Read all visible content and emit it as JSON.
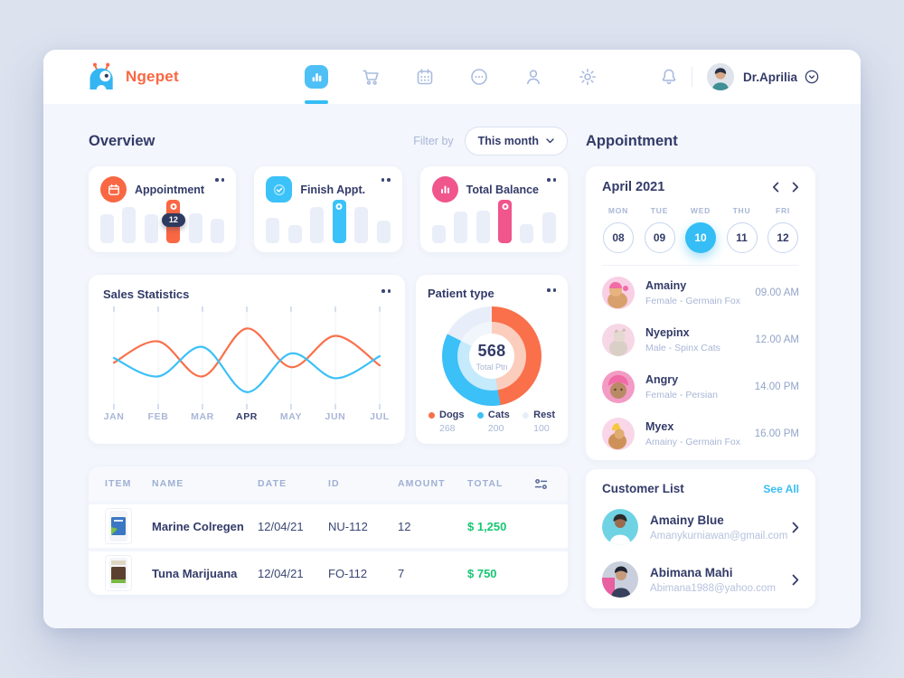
{
  "brand": {
    "name": "Ngepet"
  },
  "header": {
    "nav_icons": [
      "dashboard",
      "cart",
      "calendar",
      "chat",
      "user",
      "settings"
    ],
    "active_nav": "dashboard",
    "user_name": "Dr.Aprilia"
  },
  "overview": {
    "title": "Overview",
    "filter_label": "Filter by",
    "filter_value": "This month"
  },
  "stat_cards": [
    {
      "title": "Appointment",
      "icon": "calendar-icon",
      "accent": "#F96743",
      "bars": [
        32,
        40,
        32,
        48,
        33,
        27
      ],
      "highlight_index": 3,
      "badge": "12"
    },
    {
      "title": "Finish Appt.",
      "icon": "check-icon",
      "accent": "#3BC2F8",
      "bars": [
        28,
        20,
        40,
        48,
        40,
        25
      ],
      "highlight_index": 3
    },
    {
      "title": "Total Balance",
      "icon": "bar-chart-icon",
      "accent": "#F0558C",
      "bars": [
        20,
        35,
        36,
        48,
        21,
        34
      ],
      "highlight_index": 3
    }
  ],
  "chart_data": [
    {
      "type": "line",
      "title": "Sales Statistics",
      "x": [
        "JAN",
        "FEB",
        "MAR",
        "APR",
        "MAY",
        "JUN",
        "JUL"
      ],
      "active_x": "APR",
      "grid": "vertical",
      "legend_position": "none",
      "ylim": [
        0,
        100
      ],
      "series": [
        {
          "name": "orange",
          "color": "#F9704B",
          "values": [
            45,
            68,
            30,
            82,
            40,
            74,
            42
          ]
        },
        {
          "name": "blue",
          "color": "#3BC0F7",
          "values": [
            50,
            30,
            62,
            13,
            55,
            28,
            52
          ]
        }
      ]
    },
    {
      "type": "pie",
      "title": "Patient type",
      "total": "568",
      "center_label": "Total Ptn",
      "segments": [
        {
          "label": "Dogs",
          "value": "268",
          "color": "#F9704B",
          "color_light": "#FBCDBD"
        },
        {
          "label": "Cats",
          "value": "200",
          "color": "#3BC0F7",
          "color_light": "#C5EAFC"
        },
        {
          "label": "Rest",
          "value": "100",
          "color": "#E8EEF9",
          "color_light": "#F1F5FC"
        }
      ]
    }
  ],
  "table": {
    "headers": [
      "ITEM",
      "NAME",
      "DATE",
      "ID",
      "AMOUNT",
      "TOTAL"
    ],
    "rows": [
      {
        "name": "Marine Colregen",
        "date": "12/04/21",
        "id": "NU-112",
        "amount": "12",
        "total": "$ 1,250"
      },
      {
        "name": "Tuna Marijuana",
        "date": "12/04/21",
        "id": "FO-112",
        "amount": "7",
        "total": "$ 750"
      }
    ]
  },
  "appointment_panel": {
    "title": "Appointment",
    "month_label": "April 2021",
    "days": [
      {
        "dow": "MON",
        "date": "08",
        "selected": false
      },
      {
        "dow": "TUE",
        "date": "09",
        "selected": false
      },
      {
        "dow": "WED",
        "date": "10",
        "selected": true
      },
      {
        "dow": "THU",
        "date": "11",
        "selected": false
      },
      {
        "dow": "FRI",
        "date": "12",
        "selected": false
      }
    ],
    "items": [
      {
        "name": "Amainy",
        "detail": "Female - Germain Fox",
        "time": "09.00 AM"
      },
      {
        "name": "Nyepinx",
        "detail": "Male - Spinx Cats",
        "time": "12.00 AM"
      },
      {
        "name": "Angry",
        "detail": "Female - Persian",
        "time": "14.00 PM"
      },
      {
        "name": "Myex",
        "detail": "Amainy - Germain Fox",
        "time": "16.00 PM"
      }
    ]
  },
  "customers": {
    "title": "Customer List",
    "see_all": "See All",
    "items": [
      {
        "name": "Amainy Blue",
        "email": "Amanykurniawan@gmail.com"
      },
      {
        "name": "Abimana Mahi",
        "email": "Abimana1988@yahoo.com"
      }
    ]
  },
  "colors": {
    "accent_orange": "#F96743",
    "accent_blue": "#35BDF5",
    "accent_pink": "#F0558C",
    "money_green": "#17C673",
    "navy": "#333B69",
    "muted": "#A9B6D6"
  }
}
